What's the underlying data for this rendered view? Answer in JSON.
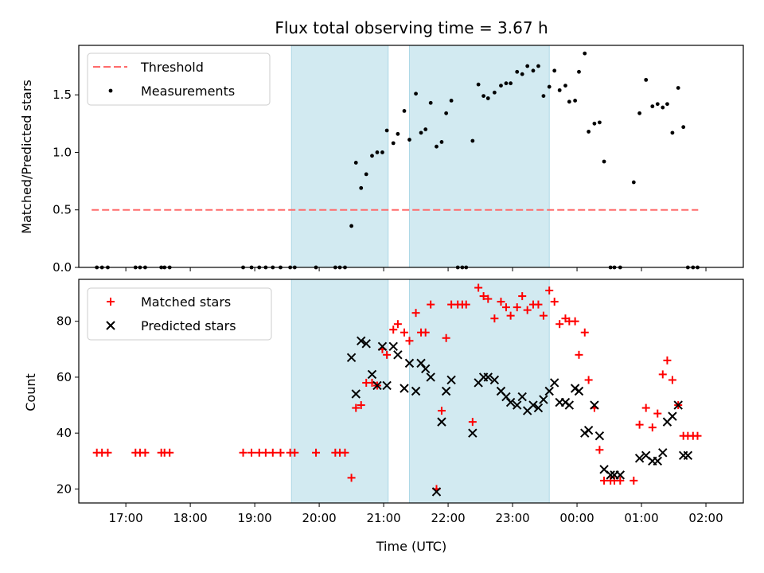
{
  "title": "Flux total observing time = 3.67 h",
  "colors": {
    "threshold": "#ff6b6b",
    "measurement": "#000000",
    "matched": "#ff0000",
    "predicted": "#000000",
    "span": "#add8e6"
  },
  "chart_data": [
    {
      "type": "scatter",
      "panel": "top",
      "ylabel": "Matched/Predicted stars",
      "ylim": [
        0,
        1.93
      ],
      "yticks": [
        0.0,
        0.5,
        1.0,
        1.5
      ],
      "ytick_labels": [
        "0.0",
        "0.5",
        "1.0",
        "1.5"
      ],
      "x_unit": "hours since 16:00 UTC",
      "xlim": [
        0.27,
        10.58
      ],
      "xticks": [
        1,
        2,
        3,
        4,
        5,
        6,
        7,
        8,
        9,
        10
      ],
      "grid": false,
      "legend_position": "upper-left",
      "shaded_spans": [
        [
          3.57,
          5.07
        ],
        [
          5.4,
          7.57
        ]
      ],
      "threshold": {
        "name": "Threshold",
        "y": 0.5,
        "x": [
          0.47,
          9.88
        ]
      },
      "series": [
        {
          "name": "Measurements",
          "points": [
            [
              0.55,
              0
            ],
            [
              0.63,
              0
            ],
            [
              0.72,
              0
            ],
            [
              1.15,
              0
            ],
            [
              1.22,
              0
            ],
            [
              1.3,
              0
            ],
            [
              1.55,
              0
            ],
            [
              1.6,
              0
            ],
            [
              1.68,
              0
            ],
            [
              2.82,
              0
            ],
            [
              2.95,
              0
            ],
            [
              3.07,
              0
            ],
            [
              3.17,
              0
            ],
            [
              3.28,
              0
            ],
            [
              3.4,
              0
            ],
            [
              3.55,
              0
            ],
            [
              3.62,
              0
            ],
            [
              3.95,
              0
            ],
            [
              4.25,
              0
            ],
            [
              4.32,
              0
            ],
            [
              4.4,
              0
            ],
            [
              4.5,
              0.36
            ],
            [
              4.57,
              0.91
            ],
            [
              4.65,
              0.69
            ],
            [
              4.73,
              0.81
            ],
            [
              4.82,
              0.97
            ],
            [
              4.9,
              1.0
            ],
            [
              4.98,
              1.0
            ],
            [
              5.05,
              1.19
            ],
            [
              5.15,
              1.08
            ],
            [
              5.22,
              1.16
            ],
            [
              5.32,
              1.36
            ],
            [
              5.4,
              1.11
            ],
            [
              5.5,
              1.51
            ],
            [
              5.58,
              1.17
            ],
            [
              5.65,
              1.2
            ],
            [
              5.73,
              1.43
            ],
            [
              5.82,
              1.05
            ],
            [
              5.9,
              1.09
            ],
            [
              5.97,
              1.34
            ],
            [
              6.05,
              1.45
            ],
            [
              6.15,
              0
            ],
            [
              6.22,
              0
            ],
            [
              6.28,
              0
            ],
            [
              6.38,
              1.1
            ],
            [
              6.47,
              1.59
            ],
            [
              6.55,
              1.49
            ],
            [
              6.62,
              1.47
            ],
            [
              6.72,
              1.52
            ],
            [
              6.82,
              1.58
            ],
            [
              6.9,
              1.6
            ],
            [
              6.97,
              1.6
            ],
            [
              7.07,
              1.7
            ],
            [
              7.15,
              1.68
            ],
            [
              7.23,
              1.75
            ],
            [
              7.32,
              1.71
            ],
            [
              7.4,
              1.75
            ],
            [
              7.48,
              1.49
            ],
            [
              7.57,
              1.57
            ],
            [
              7.65,
              1.71
            ],
            [
              7.73,
              1.54
            ],
            [
              7.82,
              1.58
            ],
            [
              7.88,
              1.44
            ],
            [
              7.97,
              1.45
            ],
            [
              8.03,
              1.7
            ],
            [
              8.12,
              1.86
            ],
            [
              8.18,
              1.18
            ],
            [
              8.27,
              1.25
            ],
            [
              8.35,
              1.26
            ],
            [
              8.42,
              0.92
            ],
            [
              8.52,
              0
            ],
            [
              8.58,
              0
            ],
            [
              8.67,
              0
            ],
            [
              8.88,
              0.74
            ],
            [
              8.97,
              1.34
            ],
            [
              9.07,
              1.63
            ],
            [
              9.17,
              1.4
            ],
            [
              9.25,
              1.42
            ],
            [
              9.33,
              1.39
            ],
            [
              9.4,
              1.42
            ],
            [
              9.48,
              1.17
            ],
            [
              9.57,
              1.56
            ],
            [
              9.65,
              1.22
            ],
            [
              9.72,
              0
            ],
            [
              9.8,
              0
            ],
            [
              9.87,
              0
            ]
          ]
        }
      ]
    },
    {
      "type": "scatter",
      "panel": "bottom",
      "ylabel": "Count",
      "xlabel": "Time (UTC)",
      "ylim": [
        15,
        95
      ],
      "yticks": [
        20,
        40,
        60,
        80
      ],
      "ytick_labels": [
        "20",
        "40",
        "60",
        "80"
      ],
      "x_unit": "hours since 16:00 UTC",
      "xlim": [
        0.27,
        10.58
      ],
      "xticks": [
        1,
        2,
        3,
        4,
        5,
        6,
        7,
        8,
        9,
        10
      ],
      "xtick_labels": [
        "17:00",
        "18:00",
        "19:00",
        "20:00",
        "21:00",
        "22:00",
        "23:00",
        "00:00",
        "01:00",
        "02:00"
      ],
      "grid": false,
      "legend_position": "upper-left",
      "shaded_spans": [
        [
          3.57,
          5.07
        ],
        [
          5.4,
          7.57
        ]
      ],
      "series": [
        {
          "name": "Matched stars",
          "marker": "plus",
          "points": [
            [
              0.55,
              33
            ],
            [
              0.63,
              33
            ],
            [
              0.72,
              33
            ],
            [
              1.15,
              33
            ],
            [
              1.22,
              33
            ],
            [
              1.3,
              33
            ],
            [
              1.55,
              33
            ],
            [
              1.6,
              33
            ],
            [
              1.68,
              33
            ],
            [
              2.82,
              33
            ],
            [
              2.95,
              33
            ],
            [
              3.07,
              33
            ],
            [
              3.17,
              33
            ],
            [
              3.28,
              33
            ],
            [
              3.4,
              33
            ],
            [
              3.55,
              33
            ],
            [
              3.62,
              33
            ],
            [
              3.95,
              33
            ],
            [
              4.25,
              33
            ],
            [
              4.32,
              33
            ],
            [
              4.4,
              33
            ],
            [
              4.5,
              24
            ],
            [
              4.57,
              49
            ],
            [
              4.65,
              50
            ],
            [
              4.73,
              58
            ],
            [
              4.82,
              58
            ],
            [
              4.9,
              57
            ],
            [
              4.98,
              70
            ],
            [
              5.05,
              68
            ],
            [
              5.15,
              77
            ],
            [
              5.22,
              79
            ],
            [
              5.32,
              76
            ],
            [
              5.4,
              73
            ],
            [
              5.5,
              83
            ],
            [
              5.58,
              76
            ],
            [
              5.65,
              76
            ],
            [
              5.73,
              86
            ],
            [
              5.82,
              20
            ],
            [
              5.9,
              48
            ],
            [
              5.97,
              74
            ],
            [
              6.05,
              86
            ],
            [
              6.15,
              86
            ],
            [
              6.22,
              86
            ],
            [
              6.28,
              86
            ],
            [
              6.38,
              44
            ],
            [
              6.47,
              92
            ],
            [
              6.55,
              89
            ],
            [
              6.62,
              88
            ],
            [
              6.72,
              81
            ],
            [
              6.82,
              87
            ],
            [
              6.9,
              85
            ],
            [
              6.97,
              82
            ],
            [
              7.07,
              85
            ],
            [
              7.15,
              89
            ],
            [
              7.23,
              84
            ],
            [
              7.32,
              86
            ],
            [
              7.4,
              86
            ],
            [
              7.48,
              82
            ],
            [
              7.57,
              91
            ],
            [
              7.65,
              87
            ],
            [
              7.73,
              79
            ],
            [
              7.82,
              81
            ],
            [
              7.88,
              80
            ],
            [
              7.97,
              80
            ],
            [
              8.03,
              68
            ],
            [
              8.12,
              76
            ],
            [
              8.18,
              59
            ],
            [
              8.27,
              49
            ],
            [
              8.35,
              34
            ],
            [
              8.42,
              23
            ],
            [
              8.52,
              23
            ],
            [
              8.58,
              23
            ],
            [
              8.67,
              23
            ],
            [
              8.88,
              23
            ],
            [
              8.97,
              43
            ],
            [
              9.07,
              49
            ],
            [
              9.17,
              42
            ],
            [
              9.25,
              47
            ],
            [
              9.33,
              61
            ],
            [
              9.4,
              66
            ],
            [
              9.48,
              59
            ],
            [
              9.57,
              50
            ],
            [
              9.65,
              39
            ],
            [
              9.72,
              39
            ],
            [
              9.8,
              39
            ],
            [
              9.87,
              39
            ]
          ]
        },
        {
          "name": "Predicted stars",
          "marker": "x",
          "points": [
            [
              4.5,
              67
            ],
            [
              4.57,
              54
            ],
            [
              4.65,
              73
            ],
            [
              4.73,
              72
            ],
            [
              4.82,
              61
            ],
            [
              4.9,
              57
            ],
            [
              4.98,
              71
            ],
            [
              5.05,
              57
            ],
            [
              5.15,
              71
            ],
            [
              5.22,
              68
            ],
            [
              5.32,
              56
            ],
            [
              5.4,
              65
            ],
            [
              5.5,
              55
            ],
            [
              5.58,
              65
            ],
            [
              5.65,
              63
            ],
            [
              5.73,
              60
            ],
            [
              5.82,
              19
            ],
            [
              5.9,
              44
            ],
            [
              5.97,
              55
            ],
            [
              6.05,
              59
            ],
            [
              6.38,
              40
            ],
            [
              6.47,
              58
            ],
            [
              6.55,
              60
            ],
            [
              6.62,
              60
            ],
            [
              6.72,
              59
            ],
            [
              6.82,
              55
            ],
            [
              6.9,
              53
            ],
            [
              6.97,
              51
            ],
            [
              7.07,
              50
            ],
            [
              7.15,
              53
            ],
            [
              7.23,
              48
            ],
            [
              7.32,
              50
            ],
            [
              7.4,
              49
            ],
            [
              7.48,
              52
            ],
            [
              7.57,
              55
            ],
            [
              7.65,
              58
            ],
            [
              7.73,
              51
            ],
            [
              7.82,
              51
            ],
            [
              7.88,
              50
            ],
            [
              7.97,
              56
            ],
            [
              8.03,
              55
            ],
            [
              8.12,
              40
            ],
            [
              8.18,
              41
            ],
            [
              8.27,
              50
            ],
            [
              8.35,
              39
            ],
            [
              8.42,
              27
            ],
            [
              8.52,
              25
            ],
            [
              8.58,
              25
            ],
            [
              8.67,
              25
            ],
            [
              8.97,
              31
            ],
            [
              9.07,
              32
            ],
            [
              9.17,
              30
            ],
            [
              9.25,
              30
            ],
            [
              9.33,
              33
            ],
            [
              9.4,
              44
            ],
            [
              9.48,
              46
            ],
            [
              9.57,
              50
            ],
            [
              9.65,
              32
            ],
            [
              9.72,
              32
            ]
          ]
        }
      ]
    }
  ]
}
